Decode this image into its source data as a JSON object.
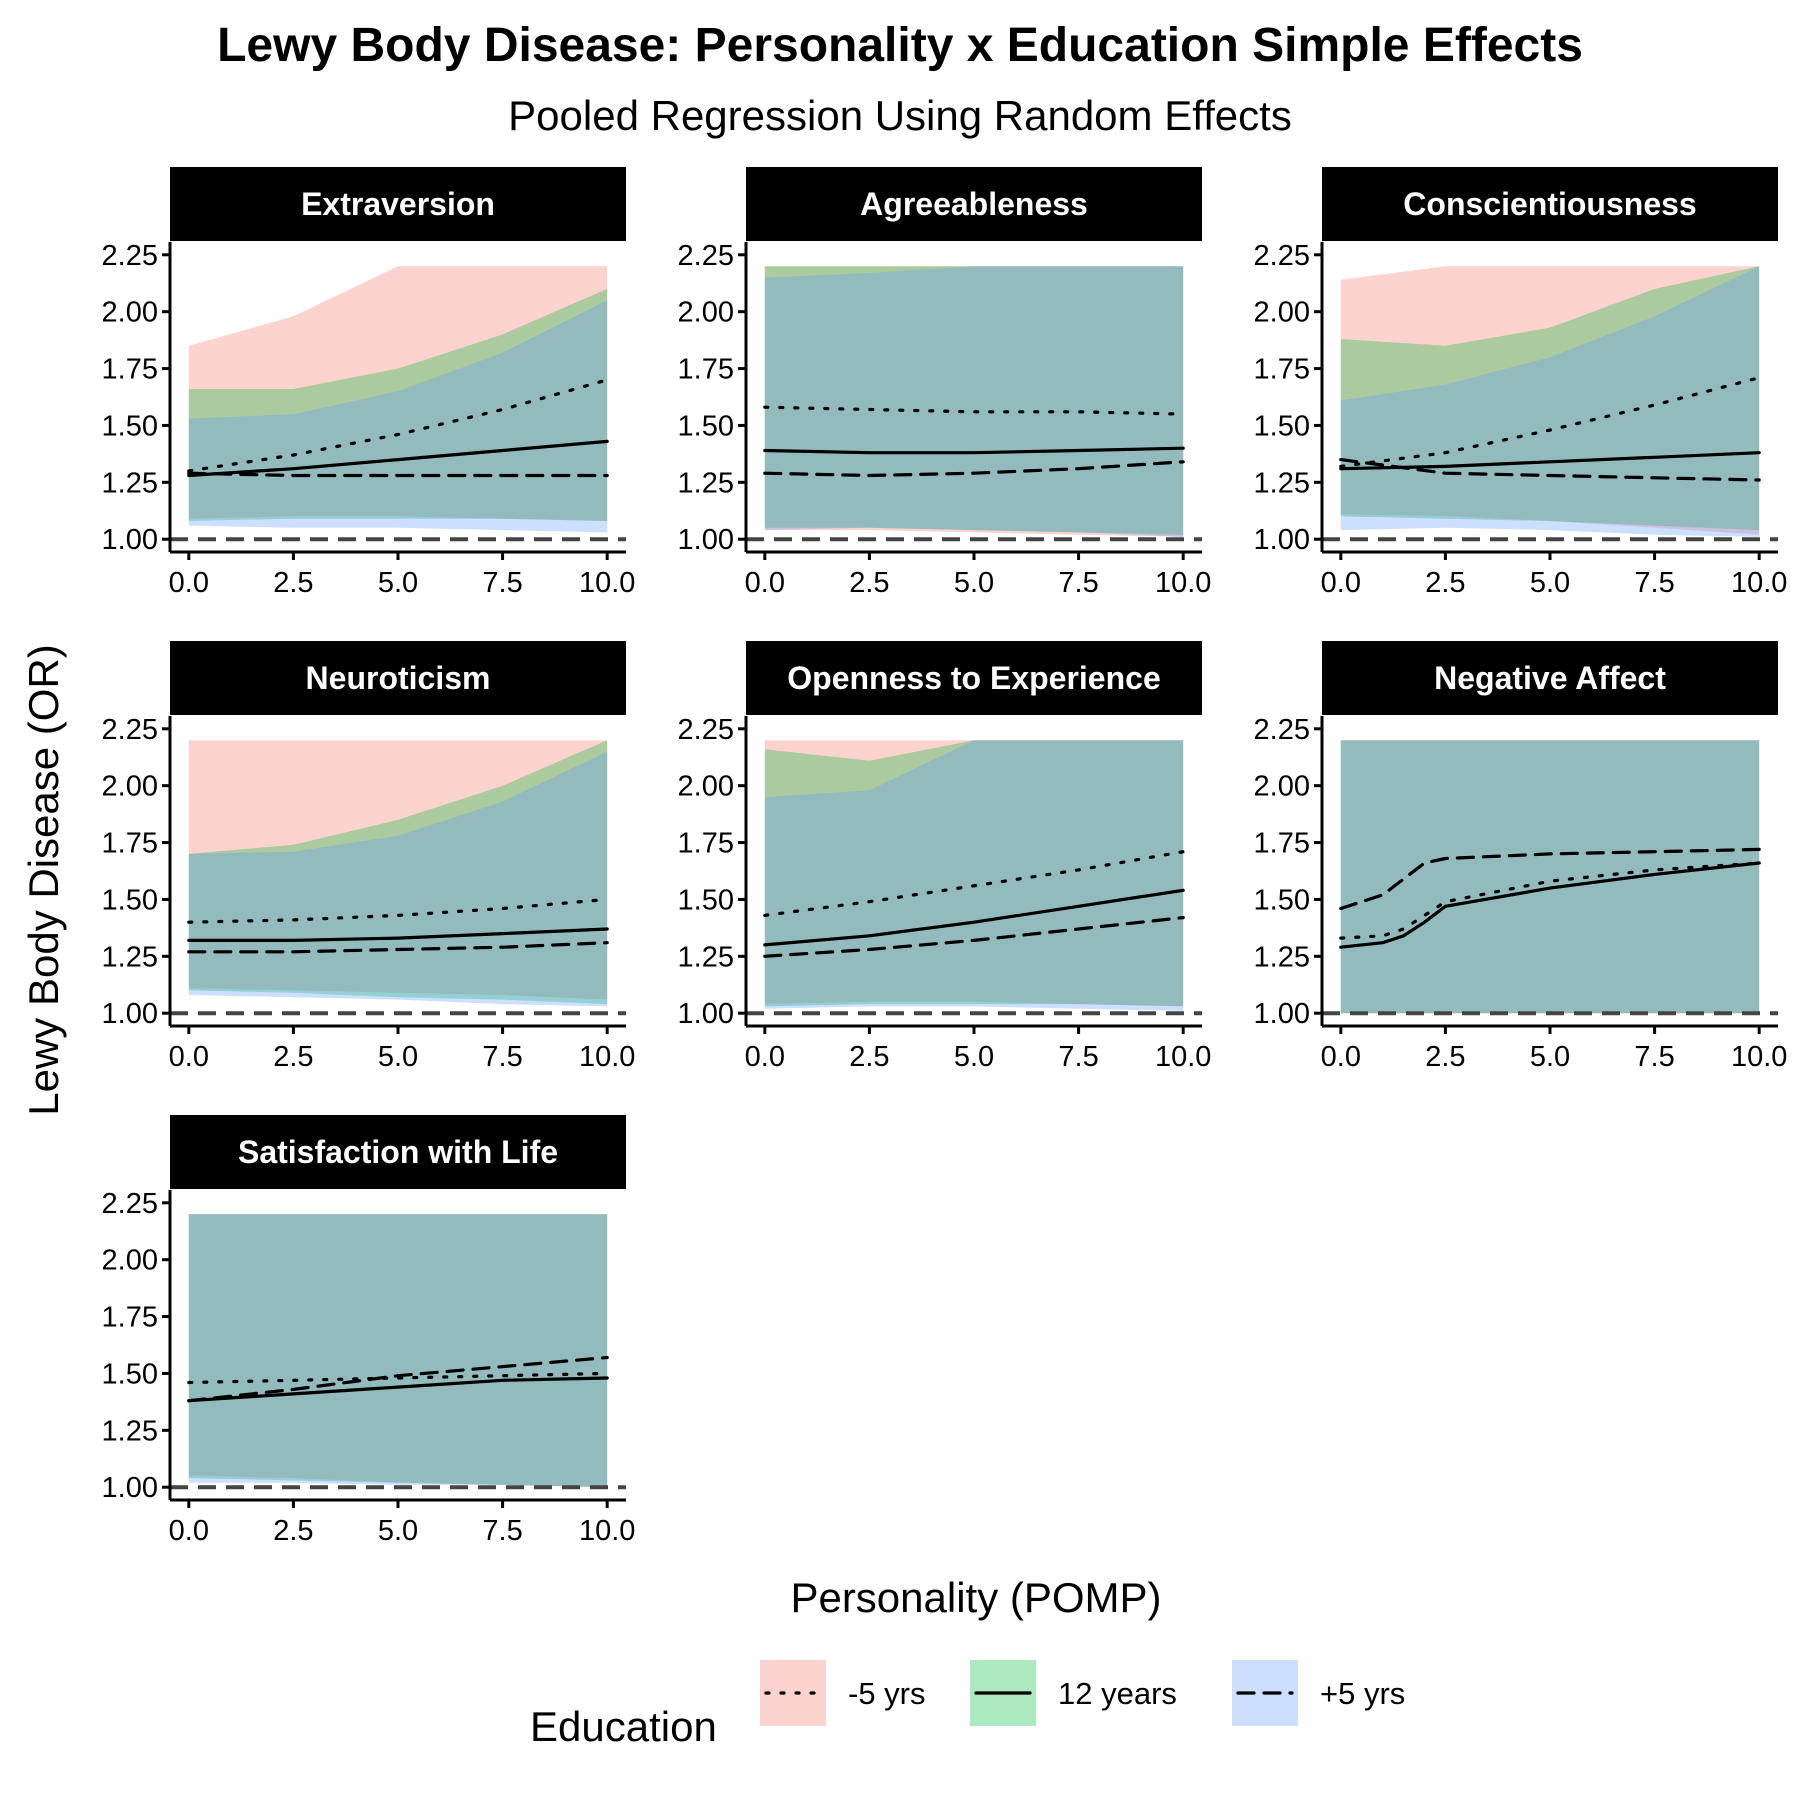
{
  "title": "Lewy Body Disease: Personality x Education Simple Effects",
  "subtitle": "Pooled Regression Using Random Effects",
  "chart_data": {
    "type": "line",
    "xlabel": "Personality (POMP)",
    "ylabel": "Lewy Body Disease (OR)",
    "xlim": [
      0,
      10
    ],
    "ylim": [
      1.0,
      2.25
    ],
    "x_ticks": [
      "0.0",
      "2.5",
      "5.0",
      "7.5",
      "10.0"
    ],
    "y_ticks": [
      "1.00",
      "1.25",
      "1.50",
      "1.75",
      "2.00",
      "2.25"
    ],
    "reference_line": 1.0,
    "band_cap": 2.2,
    "legend": {
      "title": "Education",
      "position": "bottom",
      "items": [
        {
          "label": "-5 yrs",
          "color": "#F8766D",
          "linetype": "dotted"
        },
        {
          "label": "12 years",
          "color": "#00BA38",
          "linetype": "solid"
        },
        {
          "label": "+5 yrs",
          "color": "#619CFF",
          "linetype": "dashed"
        }
      ]
    },
    "panels": [
      {
        "name": "Extraversion",
        "x": [
          0,
          2.5,
          5,
          7.5,
          10
        ],
        "series": [
          {
            "name": "-5 yrs",
            "values": [
              1.3,
              1.37,
              1.46,
              1.57,
              1.7
            ],
            "lower": [
              1.09,
              1.1,
              1.1,
              1.09,
              1.08
            ],
            "upper": [
              1.85,
              1.98,
              2.2,
              2.2,
              2.2
            ]
          },
          {
            "name": "12 years",
            "values": [
              1.28,
              1.31,
              1.35,
              1.39,
              1.43
            ],
            "lower": [
              1.08,
              1.09,
              1.09,
              1.09,
              1.08
            ],
            "upper": [
              1.66,
              1.66,
              1.75,
              1.9,
              2.1
            ]
          },
          {
            "name": "+5 yrs",
            "values": [
              1.29,
              1.28,
              1.28,
              1.28,
              1.28
            ],
            "lower": [
              1.06,
              1.05,
              1.05,
              1.04,
              1.03
            ],
            "upper": [
              1.53,
              1.55,
              1.65,
              1.82,
              2.05
            ]
          }
        ]
      },
      {
        "name": "Agreeableness",
        "x": [
          0,
          2.5,
          5,
          7.5,
          10
        ],
        "series": [
          {
            "name": "-5 yrs",
            "values": [
              1.58,
              1.57,
              1.56,
              1.56,
              1.55
            ],
            "lower": [
              1.04,
              1.04,
              1.03,
              1.02,
              1.01
            ],
            "upper": [
              2.2,
              2.2,
              2.2,
              2.2,
              2.2
            ]
          },
          {
            "name": "12 years",
            "values": [
              1.39,
              1.38,
              1.38,
              1.39,
              1.4
            ],
            "lower": [
              1.05,
              1.05,
              1.04,
              1.03,
              1.02
            ],
            "upper": [
              2.2,
              2.2,
              2.2,
              2.2,
              2.2
            ]
          },
          {
            "name": "+5 yrs",
            "values": [
              1.29,
              1.28,
              1.29,
              1.31,
              1.34
            ],
            "lower": [
              1.04,
              1.05,
              1.04,
              1.03,
              1.01
            ],
            "upper": [
              2.15,
              2.17,
              2.2,
              2.2,
              2.2
            ]
          }
        ]
      },
      {
        "name": "Conscientiousness",
        "x": [
          0,
          2.5,
          5,
          7.5,
          10
        ],
        "series": [
          {
            "name": "-5 yrs",
            "values": [
              1.32,
              1.38,
              1.48,
              1.59,
              1.71
            ],
            "lower": [
              1.11,
              1.1,
              1.08,
              1.05,
              1.02
            ],
            "upper": [
              2.14,
              2.2,
              2.2,
              2.2,
              2.2
            ]
          },
          {
            "name": "12 years",
            "values": [
              1.31,
              1.32,
              1.34,
              1.36,
              1.38
            ],
            "lower": [
              1.1,
              1.09,
              1.08,
              1.06,
              1.04
            ],
            "upper": [
              1.88,
              1.85,
              1.93,
              2.1,
              2.2
            ]
          },
          {
            "name": "+5 yrs",
            "values": [
              1.35,
              1.29,
              1.28,
              1.27,
              1.26
            ],
            "lower": [
              1.04,
              1.05,
              1.04,
              1.02,
              1.01
            ],
            "upper": [
              1.61,
              1.68,
              1.8,
              1.98,
              2.2
            ]
          }
        ]
      },
      {
        "name": "Neuroticism",
        "x": [
          0,
          2.5,
          5,
          7.5,
          10
        ],
        "series": [
          {
            "name": "-5 yrs",
            "values": [
              1.4,
              1.41,
              1.43,
              1.46,
              1.5
            ],
            "lower": [
              1.11,
              1.1,
              1.09,
              1.08,
              1.06
            ],
            "upper": [
              2.2,
              2.2,
              2.2,
              2.2,
              2.2
            ]
          },
          {
            "name": "12 years",
            "values": [
              1.32,
              1.32,
              1.33,
              1.35,
              1.37
            ],
            "lower": [
              1.1,
              1.09,
              1.07,
              1.06,
              1.04
            ],
            "upper": [
              1.7,
              1.74,
              1.85,
              2.0,
              2.2
            ]
          },
          {
            "name": "+5 yrs",
            "values": [
              1.27,
              1.27,
              1.28,
              1.29,
              1.31
            ],
            "lower": [
              1.08,
              1.07,
              1.06,
              1.04,
              1.03
            ],
            "upper": [
              1.7,
              1.71,
              1.78,
              1.93,
              2.15
            ]
          }
        ]
      },
      {
        "name": "Openness to Experience",
        "x": [
          0,
          2.5,
          5,
          7.5,
          10
        ],
        "series": [
          {
            "name": "-5 yrs",
            "values": [
              1.43,
              1.49,
              1.56,
              1.63,
              1.71
            ],
            "lower": [
              1.04,
              1.05,
              1.05,
              1.04,
              1.03
            ],
            "upper": [
              2.2,
              2.2,
              2.2,
              2.2,
              2.2
            ]
          },
          {
            "name": "12 years",
            "values": [
              1.3,
              1.34,
              1.4,
              1.47,
              1.54
            ],
            "lower": [
              1.03,
              1.04,
              1.04,
              1.04,
              1.03
            ],
            "upper": [
              2.16,
              2.11,
              2.2,
              2.2,
              2.2
            ]
          },
          {
            "name": "+5 yrs",
            "values": [
              1.25,
              1.28,
              1.32,
              1.37,
              1.42
            ],
            "lower": [
              1.02,
              1.03,
              1.03,
              1.02,
              1.01
            ],
            "upper": [
              1.95,
              1.98,
              2.2,
              2.2,
              2.2
            ]
          }
        ]
      },
      {
        "name": "Negative Affect",
        "x": [
          0,
          1,
          1.5,
          2,
          2.5,
          5,
          7.5,
          10
        ],
        "series": [
          {
            "name": "-5 yrs",
            "values": [
              1.33,
              1.34,
              1.37,
              1.43,
              1.49,
              1.58,
              1.63,
              1.66
            ],
            "lower": [
              1.0,
              1.0,
              1.0,
              1.0,
              1.0,
              1.0,
              1.0,
              1.0
            ],
            "upper": [
              2.2,
              2.2,
              2.2,
              2.2,
              2.2,
              2.2,
              2.2,
              2.2
            ]
          },
          {
            "name": "12 years",
            "values": [
              1.29,
              1.31,
              1.34,
              1.4,
              1.47,
              1.55,
              1.61,
              1.66
            ],
            "lower": [
              1.0,
              1.0,
              1.0,
              1.0,
              1.0,
              1.0,
              1.0,
              1.0
            ],
            "upper": [
              2.2,
              2.2,
              2.2,
              2.2,
              2.2,
              2.2,
              2.2,
              2.2
            ]
          },
          {
            "name": "+5 yrs",
            "values": [
              1.46,
              1.52,
              1.59,
              1.66,
              1.68,
              1.7,
              1.71,
              1.72
            ],
            "lower": [
              1.0,
              1.0,
              1.0,
              1.0,
              1.0,
              1.0,
              1.0,
              1.0
            ],
            "upper": [
              2.2,
              2.2,
              2.2,
              2.2,
              2.2,
              2.2,
              2.2,
              2.2
            ]
          }
        ]
      },
      {
        "name": "Satisfaction with Life",
        "x": [
          0,
          2.5,
          5,
          7.5,
          10
        ],
        "series": [
          {
            "name": "-5 yrs",
            "values": [
              1.46,
              1.47,
              1.48,
              1.49,
              1.5
            ],
            "lower": [
              1.05,
              1.04,
              1.02,
              1.01,
              1.0
            ],
            "upper": [
              2.2,
              2.2,
              2.2,
              2.2,
              2.2
            ]
          },
          {
            "name": "12 years",
            "values": [
              1.38,
              1.41,
              1.44,
              1.47,
              1.48
            ],
            "lower": [
              1.04,
              1.03,
              1.02,
              1.01,
              1.0
            ],
            "upper": [
              2.2,
              2.2,
              2.2,
              2.2,
              2.2
            ]
          },
          {
            "name": "+5 yrs",
            "values": [
              1.38,
              1.43,
              1.49,
              1.53,
              1.57
            ],
            "lower": [
              1.02,
              1.02,
              1.01,
              1.01,
              1.0
            ],
            "upper": [
              2.2,
              2.2,
              2.2,
              2.2,
              2.2
            ]
          }
        ]
      }
    ]
  }
}
